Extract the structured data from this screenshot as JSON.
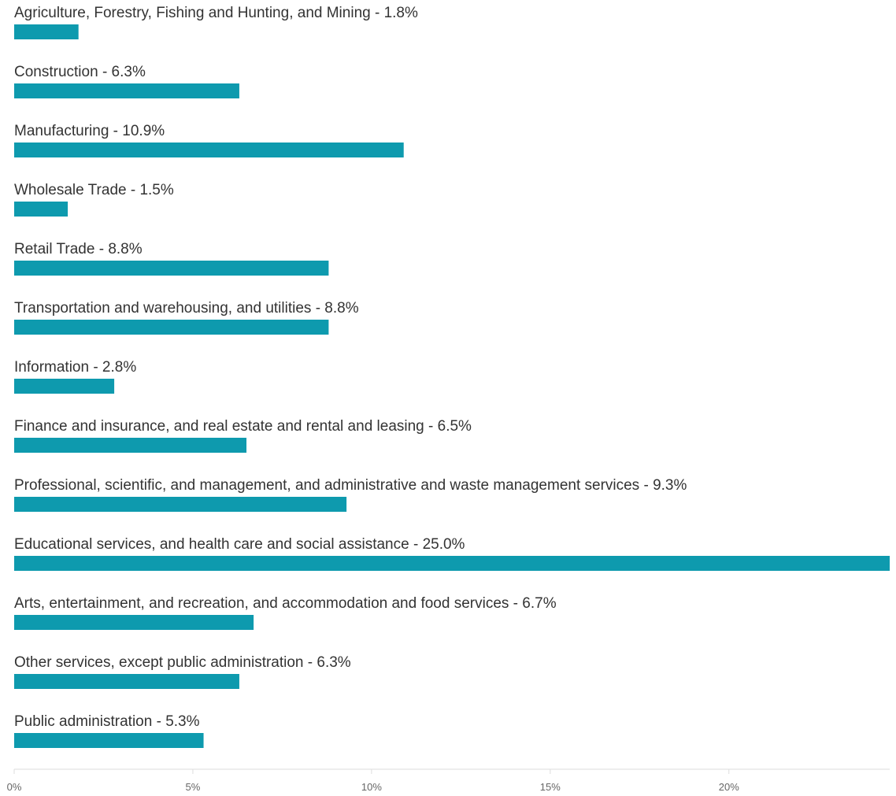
{
  "chart_data": {
    "type": "bar",
    "orientation": "horizontal",
    "title": "",
    "xlabel": "",
    "ylabel": "",
    "categories": [
      "Agriculture, Forestry, Fishing and Hunting, and Mining",
      "Construction",
      "Manufacturing",
      "Wholesale Trade",
      "Retail Trade",
      "Transportation and warehousing, and utilities",
      "Information",
      "Finance and insurance, and real estate and rental and leasing",
      "Professional, scientific, and management, and administrative and waste management services",
      "Educational services, and health care and social assistance",
      "Arts, entertainment, and recreation, and accommodation and food services",
      "Other services, except public administration",
      "Public administration"
    ],
    "values": [
      1.8,
      6.3,
      10.9,
      1.5,
      8.8,
      8.8,
      2.8,
      6.5,
      9.3,
      25.0,
      6.7,
      6.3,
      5.3
    ],
    "labels": [
      "Agriculture, Forestry, Fishing and Hunting, and Mining - 1.8%",
      "Construction - 6.3%",
      "Manufacturing - 10.9%",
      "Wholesale Trade - 1.5%",
      "Retail Trade - 8.8%",
      "Transportation and warehousing, and utilities - 8.8%",
      "Information - 2.8%",
      "Finance and insurance, and real estate and rental and leasing - 6.5%",
      "Professional, scientific, and management, and administrative and waste management services - 9.3%",
      "Educational services, and health care and social assistance - 25.0%",
      "Arts, entertainment, and recreation, and accommodation and food services - 6.7%",
      "Other services, except public administration - 6.3%",
      "Public administration - 5.3%"
    ],
    "xlim": [
      0,
      24.5
    ],
    "x_ticks": [
      0,
      5,
      10,
      15,
      20
    ],
    "x_tick_labels": [
      "0%",
      "5%",
      "10%",
      "15%",
      "20%"
    ],
    "grid": false,
    "bar_color": "#0E9AAE",
    "axis_color": "#DDDDDD"
  }
}
